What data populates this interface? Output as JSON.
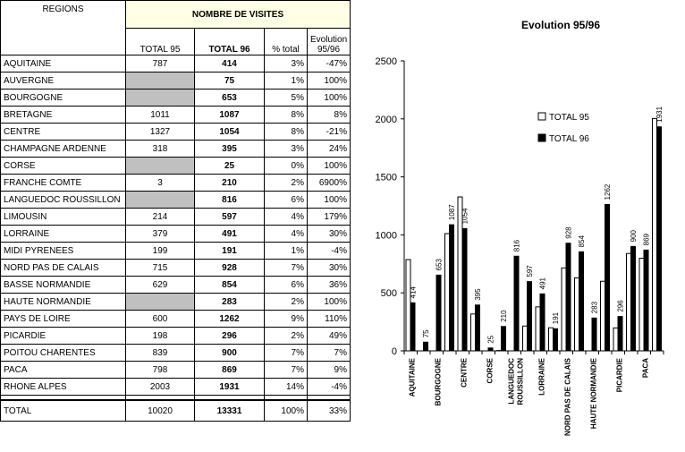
{
  "table": {
    "col_regions": "REGIONS",
    "group_header": "NOMBRE DE VISITES",
    "col_total95": "TOTAL 95",
    "col_total96": "TOTAL 96",
    "col_pct": "% total",
    "col_evo": "Evolution 95/96",
    "rows": [
      {
        "region": "AQUITAINE",
        "t95": "787",
        "t96": "414",
        "pct": "3%",
        "evo": "-47%"
      },
      {
        "region": "AUVERGNE",
        "t95": "",
        "t96": "75",
        "pct": "1%",
        "evo": "100%"
      },
      {
        "region": "BOURGOGNE",
        "t95": "",
        "t96": "653",
        "pct": "5%",
        "evo": "100%"
      },
      {
        "region": "BRETAGNE",
        "t95": "1011",
        "t96": "1087",
        "pct": "8%",
        "evo": "8%"
      },
      {
        "region": "CENTRE",
        "t95": "1327",
        "t96": "1054",
        "pct": "8%",
        "evo": "-21%"
      },
      {
        "region": "CHAMPAGNE ARDENNE",
        "t95": "318",
        "t96": "395",
        "pct": "3%",
        "evo": "24%"
      },
      {
        "region": "CORSE",
        "t95": "",
        "t96": "25",
        "pct": "0%",
        "evo": "100%"
      },
      {
        "region": "FRANCHE COMTE",
        "t95": "3",
        "t96": "210",
        "pct": "2%",
        "evo": "6900%"
      },
      {
        "region": "LANGUEDOC ROUSSILLON",
        "t95": "",
        "t96": "816",
        "pct": "6%",
        "evo": "100%"
      },
      {
        "region": "LIMOUSIN",
        "t95": "214",
        "t96": "597",
        "pct": "4%",
        "evo": "179%"
      },
      {
        "region": "LORRAINE",
        "t95": "379",
        "t96": "491",
        "pct": "4%",
        "evo": "30%"
      },
      {
        "region": "MIDI PYRENEES",
        "t95": "199",
        "t96": "191",
        "pct": "1%",
        "evo": "-4%"
      },
      {
        "region": "NORD PAS DE CALAIS",
        "t95": "715",
        "t96": "928",
        "pct": "7%",
        "evo": "30%"
      },
      {
        "region": "BASSE NORMANDIE",
        "t95": "629",
        "t96": "854",
        "pct": "6%",
        "evo": "36%"
      },
      {
        "region": "HAUTE NORMANDIE",
        "t95": "",
        "t96": "283",
        "pct": "2%",
        "evo": "100%"
      },
      {
        "region": "PAYS DE LOIRE",
        "t95": "600",
        "t96": "1262",
        "pct": "9%",
        "evo": "110%"
      },
      {
        "region": "PICARDIE",
        "t95": "198",
        "t96": "296",
        "pct": "2%",
        "evo": "49%"
      },
      {
        "region": "POITOU CHARENTES",
        "t95": "839",
        "t96": "900",
        "pct": "7%",
        "evo": "7%"
      },
      {
        "region": "PACA",
        "t95": "798",
        "t96": "869",
        "pct": "7%",
        "evo": "9%"
      },
      {
        "region": "RHONE ALPES",
        "t95": "2003",
        "t96": "1931",
        "pct": "14%",
        "evo": "-4%"
      }
    ],
    "total": {
      "label": "TOTAL",
      "t95": "10020",
      "t96": "13331",
      "pct": "100%",
      "evo": "33%"
    }
  },
  "chart_data": {
    "type": "bar",
    "title": "Evolution 95/96",
    "categories": [
      "AQUITAINE",
      "AUVERGNE",
      "BOURGOGNE",
      "BRETAGNE",
      "CENTRE",
      "CHAMPAGNE ARDENNE",
      "CORSE",
      "FRANCHE COMTE",
      "LANGUEDOC ROUSSILLON",
      "LIMOUSIN",
      "LORRAINE",
      "MIDI PYRENEES",
      "NORD PAS DE CALAIS",
      "BASSE NORMANDIE",
      "HAUTE NORMANDIE",
      "PAYS DE LOIRE",
      "PICARDIE",
      "POITOU CHARENTES",
      "PACA",
      "RHONE ALPES"
    ],
    "shown_category_labels": [
      {
        "index": 0,
        "lines": [
          "AQUITAINE"
        ]
      },
      {
        "index": 2,
        "lines": [
          "BOURGOGNE"
        ]
      },
      {
        "index": 4,
        "lines": [
          "CENTRE"
        ]
      },
      {
        "index": 6,
        "lines": [
          "CORSE"
        ]
      },
      {
        "index": 8,
        "lines": [
          "LANGUEDOC",
          "ROUSSILLON"
        ]
      },
      {
        "index": 10,
        "lines": [
          "LORRAINE"
        ]
      },
      {
        "index": 12,
        "lines": [
          "NORD PAS DE CALAIS"
        ]
      },
      {
        "index": 14,
        "lines": [
          "HAUTE NORMANDIE"
        ]
      },
      {
        "index": 16,
        "lines": [
          "PICARDIE"
        ]
      },
      {
        "index": 18,
        "lines": [
          "PACA"
        ]
      }
    ],
    "series": [
      {
        "name": "TOTAL 95",
        "color": "#ffffff",
        "values": [
          787,
          0,
          0,
          1011,
          1327,
          318,
          0,
          3,
          0,
          214,
          379,
          199,
          715,
          629,
          0,
          600,
          198,
          839,
          798,
          2003
        ]
      },
      {
        "name": "TOTAL 96",
        "color": "#000000",
        "labeled": true,
        "values": [
          414,
          75,
          653,
          1087,
          1054,
          395,
          25,
          210,
          816,
          597,
          491,
          191,
          928,
          854,
          283,
          1262,
          296,
          900,
          869,
          1931
        ]
      }
    ],
    "ylim": [
      0,
      2500
    ],
    "yticks": [
      0,
      500,
      1000,
      1500,
      2000,
      2500
    ],
    "legend_position": "top-right",
    "grid": false
  }
}
